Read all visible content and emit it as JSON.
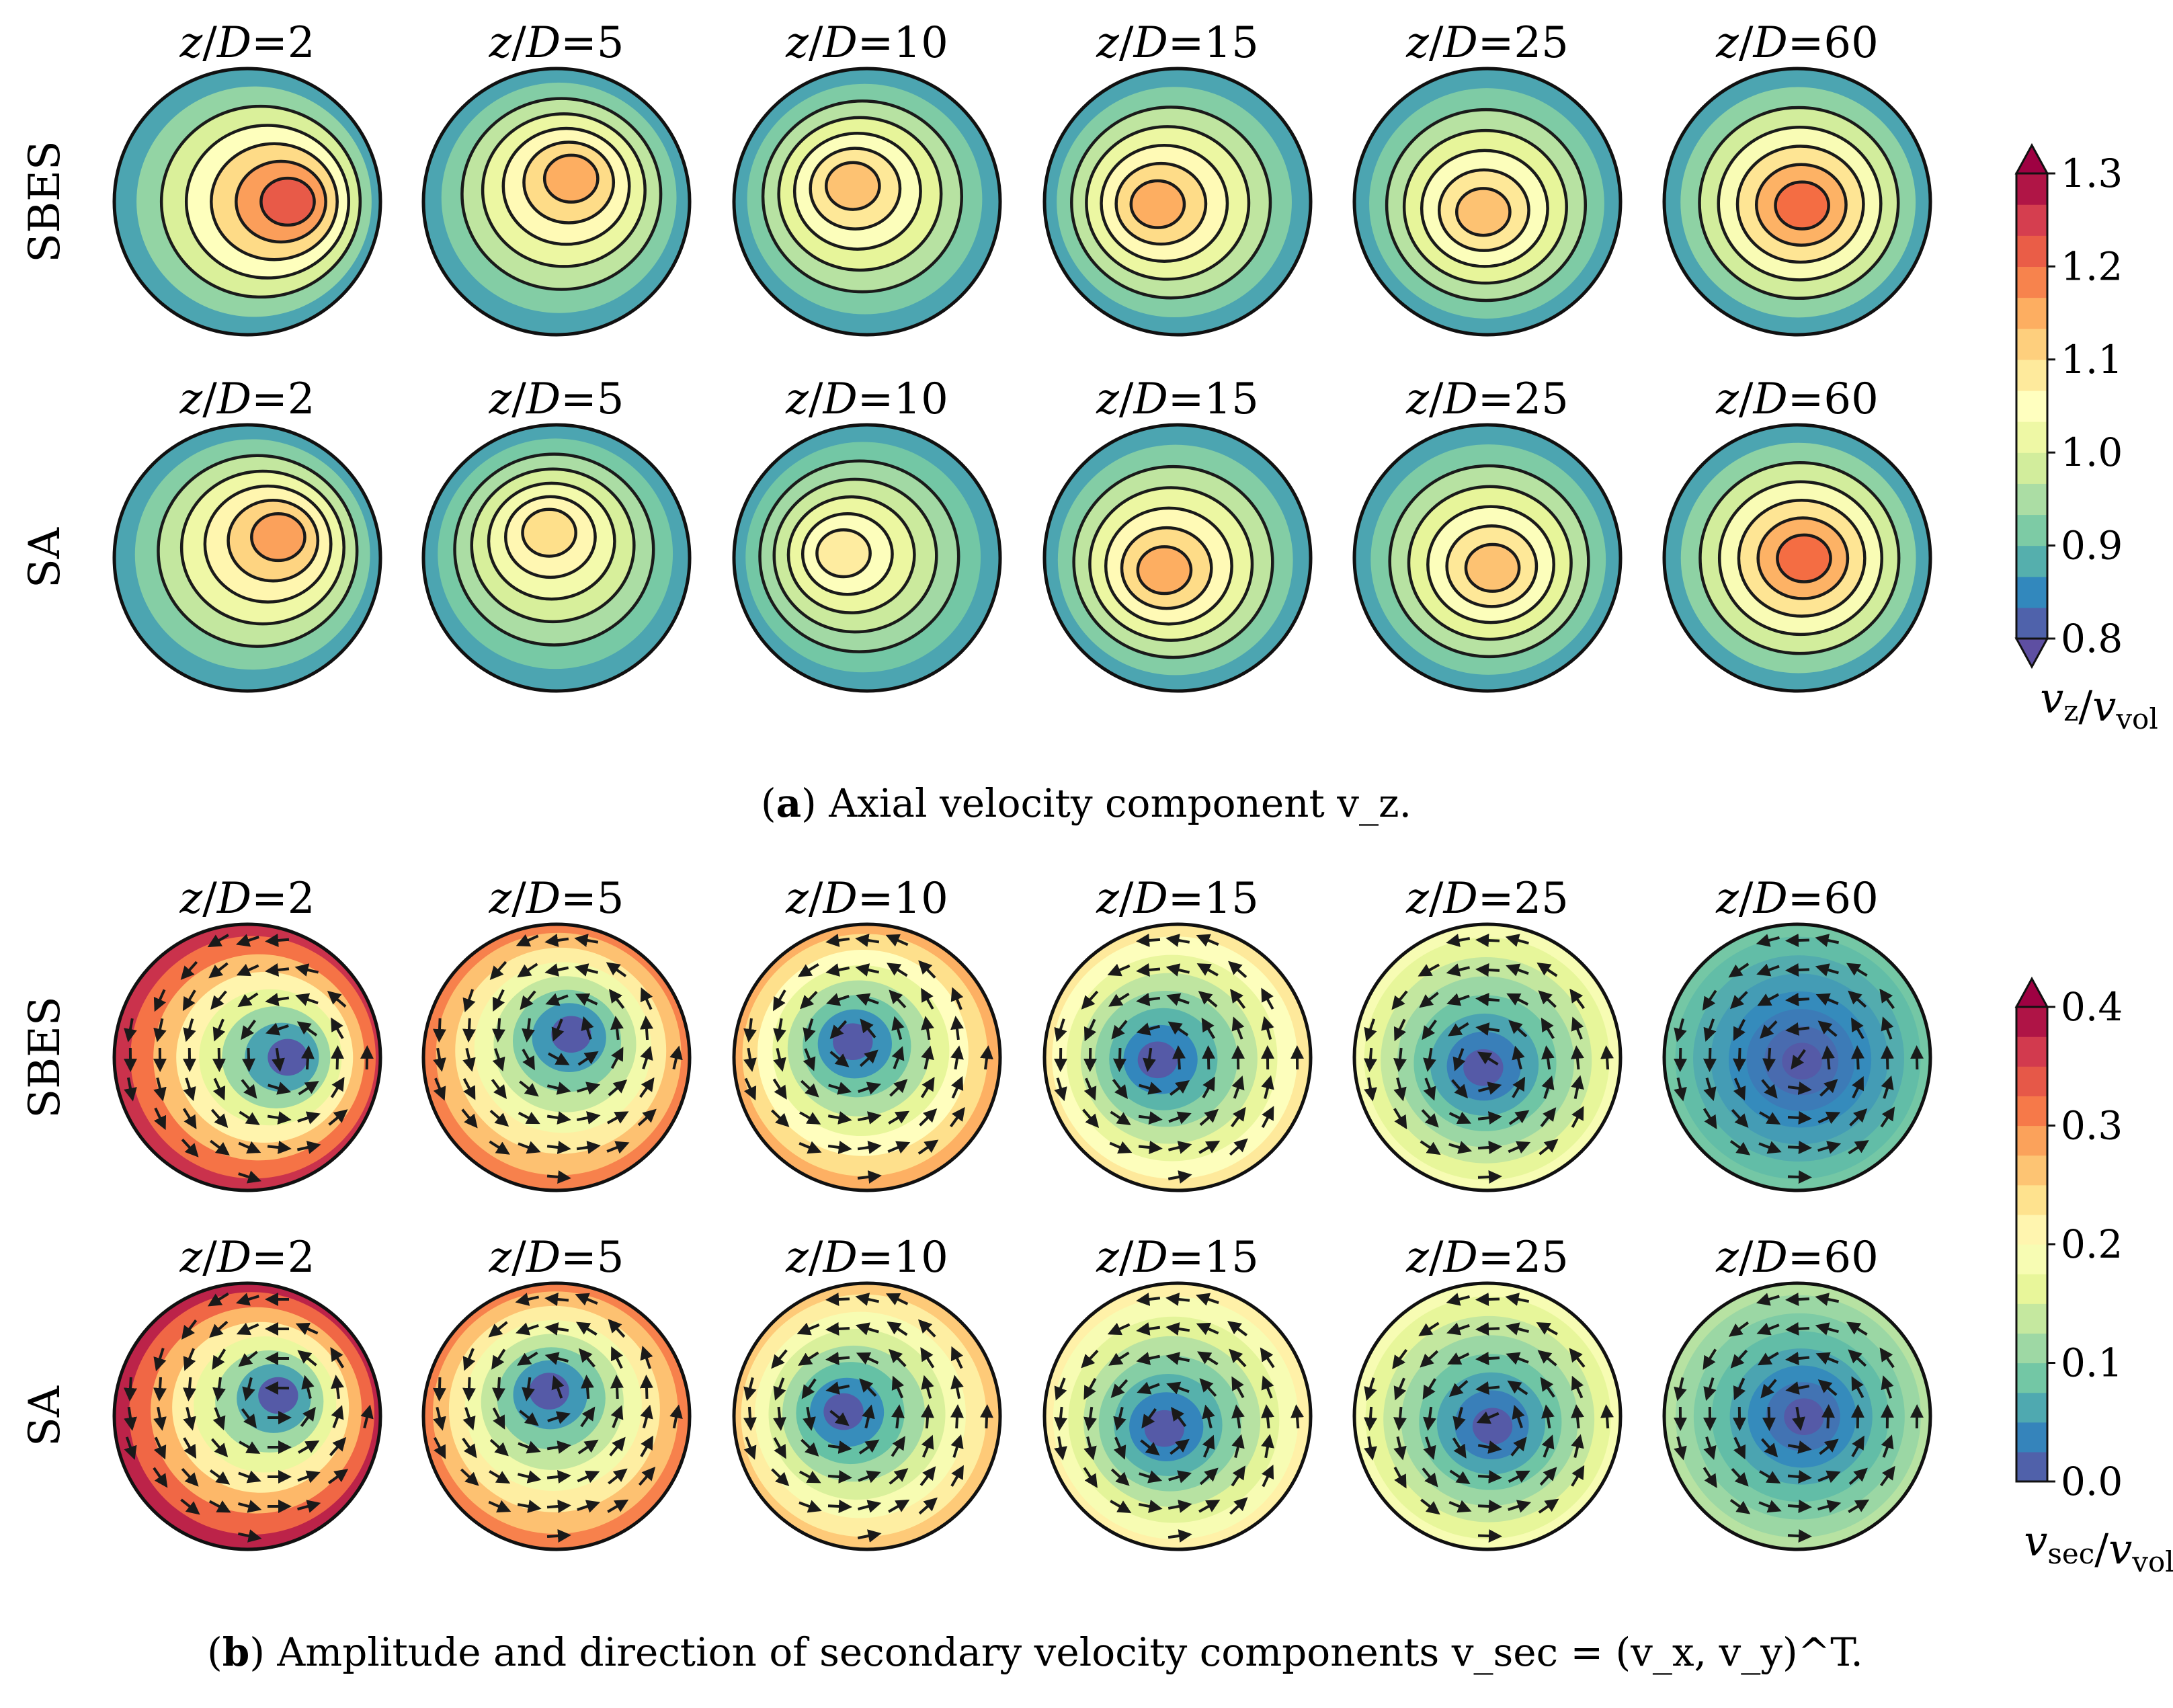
{
  "figure": {
    "caption_a": {
      "letter": "a",
      "text": "Axial velocity component v_z."
    },
    "caption_b": {
      "letter": "b",
      "text": "Amplitude and direction of secondary velocity components v_sec = (v_x, v_y)^T."
    }
  },
  "chart_data": [
    {
      "type": "heatmap",
      "panel": "a",
      "title": "",
      "rows": [
        "SBES",
        "SA"
      ],
      "columns": [
        "z/D=2",
        "z/D=5",
        "z/D=10",
        "z/D=15",
        "z/D=25",
        "z/D=60"
      ],
      "quantity": "v_z/v_vol",
      "colorbar": {
        "label": "v_z/v_vol",
        "ticks": [
          "0.8",
          "0.9",
          "1.0",
          "1.1",
          "1.2",
          "1.3"
        ],
        "range": [
          0.8,
          1.3
        ],
        "levels": 15,
        "extend": "both",
        "colormap": "Spectral_r"
      },
      "contour_lines": true,
      "peak_values": {
        "SBES": [
          1.22,
          1.15,
          1.13,
          1.15,
          1.13,
          1.2
        ],
        "SA": [
          1.16,
          1.1,
          1.08,
          1.15,
          1.13,
          1.2
        ]
      }
    },
    {
      "type": "heatmap",
      "panel": "b",
      "title": "",
      "rows": [
        "SBES",
        "SA"
      ],
      "columns": [
        "z/D=2",
        "z/D=5",
        "z/D=10",
        "z/D=15",
        "z/D=25",
        "z/D=60"
      ],
      "quantity": "v_sec/v_vol",
      "colorbar": {
        "label": "v_sec/v_vol",
        "ticks": [
          "0.0",
          "0.1",
          "0.2",
          "0.3",
          "0.4"
        ],
        "range": [
          0.0,
          0.4
        ],
        "levels": 16,
        "extend": "max",
        "colormap": "Spectral_r"
      },
      "vectors": "clockwise swirl",
      "peak_values": {
        "SBES": [
          0.36,
          0.3,
          0.27,
          0.22,
          0.18,
          0.08
        ],
        "SA": [
          0.37,
          0.3,
          0.25,
          0.21,
          0.18,
          0.12
        ]
      }
    }
  ]
}
